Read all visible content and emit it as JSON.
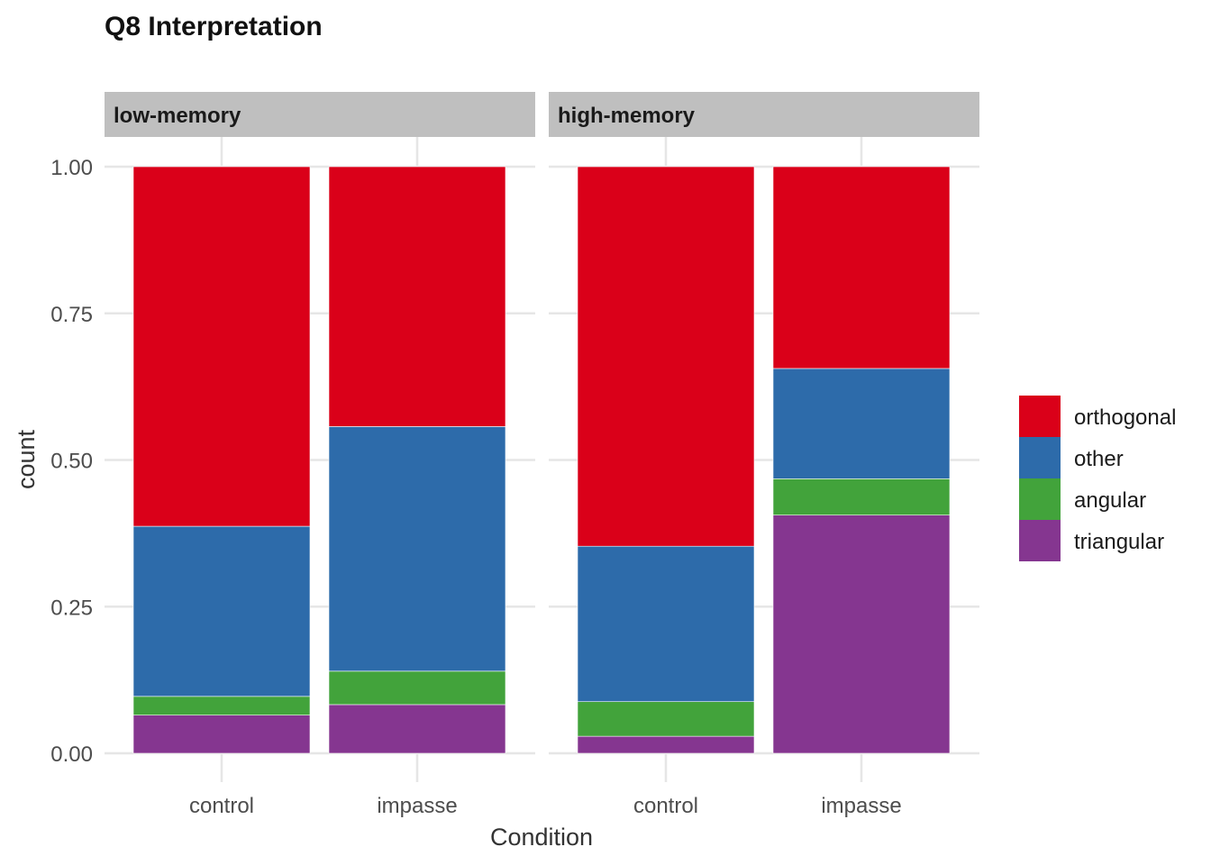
{
  "chart_data": {
    "type": "bar",
    "stacked": true,
    "title": "Q8 Interpretation",
    "xlabel": "Condition",
    "ylabel": "count",
    "ylim": [
      0,
      1
    ],
    "yticks": [
      "0.00",
      "0.25",
      "0.50",
      "0.75",
      "1.00"
    ],
    "grid": true,
    "legend_position": "right",
    "categories": [
      "control",
      "impasse"
    ],
    "panels": [
      {
        "label": "low-memory",
        "series": [
          {
            "name": "triangular",
            "values": [
              0.065,
              0.083
            ]
          },
          {
            "name": "angular",
            "values": [
              0.032,
              0.057
            ]
          },
          {
            "name": "other",
            "values": [
              0.29,
              0.417
            ]
          },
          {
            "name": "orthogonal",
            "values": [
              0.613,
              0.443
            ]
          }
        ]
      },
      {
        "label": "high-memory",
        "series": [
          {
            "name": "triangular",
            "values": [
              0.029,
              0.406
            ]
          },
          {
            "name": "angular",
            "values": [
              0.059,
              0.062
            ]
          },
          {
            "name": "other",
            "values": [
              0.265,
              0.188
            ]
          },
          {
            "name": "orthogonal",
            "values": [
              0.647,
              0.344
            ]
          }
        ]
      }
    ],
    "legend": [
      "orthogonal",
      "other",
      "angular",
      "triangular"
    ],
    "colors": {
      "orthogonal": "#DA0019",
      "other": "#2D6BAA",
      "angular": "#42A33B",
      "triangular": "#853690"
    }
  }
}
